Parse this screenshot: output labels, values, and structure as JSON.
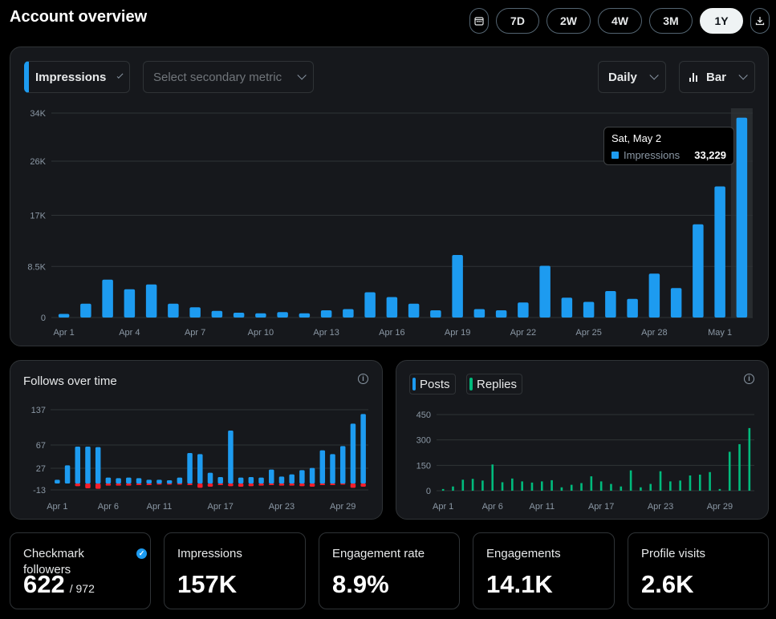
{
  "header": {
    "title": "Account overview",
    "ranges": [
      "7D",
      "2W",
      "4W",
      "3M",
      "1Y"
    ],
    "active_range": "1Y",
    "calendar_icon": "calendar-icon",
    "download_icon": "download-icon"
  },
  "main_chart": {
    "primary_metric": "Impressions",
    "secondary_placeholder": "Select secondary metric",
    "granularity": "Daily",
    "chart_kind_label": "Bar",
    "tooltip": {
      "date": "Sat, May 2",
      "label": "Impressions",
      "value": "33,229"
    }
  },
  "follows_panel": {
    "title": "Follows over time"
  },
  "posts_panel": {
    "legend": [
      {
        "name": "Posts",
        "color": "#1d9bf0"
      },
      {
        "name": "Replies",
        "color": "#00ba7c"
      }
    ]
  },
  "stats": [
    {
      "label": "Checkmark followers",
      "value": "622",
      "sub": "/ 972"
    },
    {
      "label": "Impressions",
      "value": "157K"
    },
    {
      "label": "Engagement rate",
      "value": "8.9%"
    },
    {
      "label": "Engagements",
      "value": "14.1K"
    },
    {
      "label": "Profile visits",
      "value": "2.6K"
    }
  ],
  "colors": {
    "blue": "#1d9bf0",
    "green": "#00ba7c",
    "red": "#f4212e",
    "grid": "#2f3336",
    "axis_text": "#8b98a5"
  },
  "chart_data": [
    {
      "type": "bar",
      "x_labels": [
        "Apr 1",
        "Apr 4",
        "Apr 7",
        "Apr 10",
        "Apr 13",
        "Apr 16",
        "Apr 19",
        "Apr 22",
        "Apr 25",
        "Apr 28",
        "May 1"
      ],
      "y_ticks": [
        "0",
        "8.5K",
        "17K",
        "26K",
        "34K"
      ],
      "ylim": [
        0,
        34000
      ],
      "highlight_index": 31,
      "series": [
        {
          "name": "Impressions",
          "values": [
            600,
            2300,
            6300,
            4700,
            5500,
            2300,
            1700,
            1100,
            800,
            700,
            900,
            700,
            1200,
            1400,
            4200,
            3400,
            2300,
            1200,
            10400,
            1400,
            1200,
            2500,
            8600,
            3300,
            2600,
            4400,
            3100,
            7300,
            4900,
            15500,
            21800,
            33229
          ]
        }
      ]
    },
    {
      "type": "bar",
      "x_labels": [
        "Apr 1",
        "Apr 6",
        "Apr 11",
        "Apr 17",
        "Apr 23",
        "Apr 29"
      ],
      "y_ticks": [
        "-13",
        "27",
        "67",
        "137"
      ],
      "series": [
        {
          "name": "Follows",
          "values": [
            7,
            34,
            69,
            69,
            68,
            11,
            10,
            11,
            10,
            7,
            7,
            6,
            11,
            57,
            55,
            20,
            12,
            99,
            11,
            12,
            11,
            26,
            13,
            17,
            25,
            29,
            62,
            55,
            70,
            112,
            130
          ]
        },
        {
          "name": "Unfollows",
          "values": [
            0,
            0,
            -5,
            -9,
            -10,
            -4,
            -4,
            -4,
            -3,
            -3,
            -2,
            -2,
            -2,
            -3,
            -8,
            -6,
            -3,
            -5,
            -6,
            -5,
            -4,
            -3,
            -4,
            -4,
            -5,
            -6,
            -3,
            -3,
            -2,
            -8,
            -6
          ]
        }
      ]
    },
    {
      "type": "bar",
      "x_labels": [
        "Apr 1",
        "Apr 6",
        "Apr 11",
        "Apr 17",
        "Apr 23",
        "Apr 29"
      ],
      "y_ticks": [
        "0",
        "150",
        "300",
        "450"
      ],
      "ylim": [
        0,
        450
      ],
      "series": [
        {
          "name": "Posts",
          "values": [
            0,
            0,
            0,
            0,
            0,
            0,
            0,
            0,
            0,
            0,
            0,
            0,
            0,
            0,
            0,
            0,
            0,
            0,
            0,
            0,
            0,
            0,
            0,
            0,
            0,
            0,
            0,
            0,
            0,
            0,
            0,
            0
          ]
        },
        {
          "name": "Replies",
          "values": [
            10,
            25,
            65,
            70,
            60,
            155,
            50,
            72,
            55,
            48,
            55,
            62,
            20,
            35,
            45,
            85,
            55,
            40,
            25,
            120,
            20,
            40,
            115,
            55,
            60,
            90,
            95,
            110,
            10,
            230,
            275,
            370
          ]
        }
      ]
    }
  ]
}
